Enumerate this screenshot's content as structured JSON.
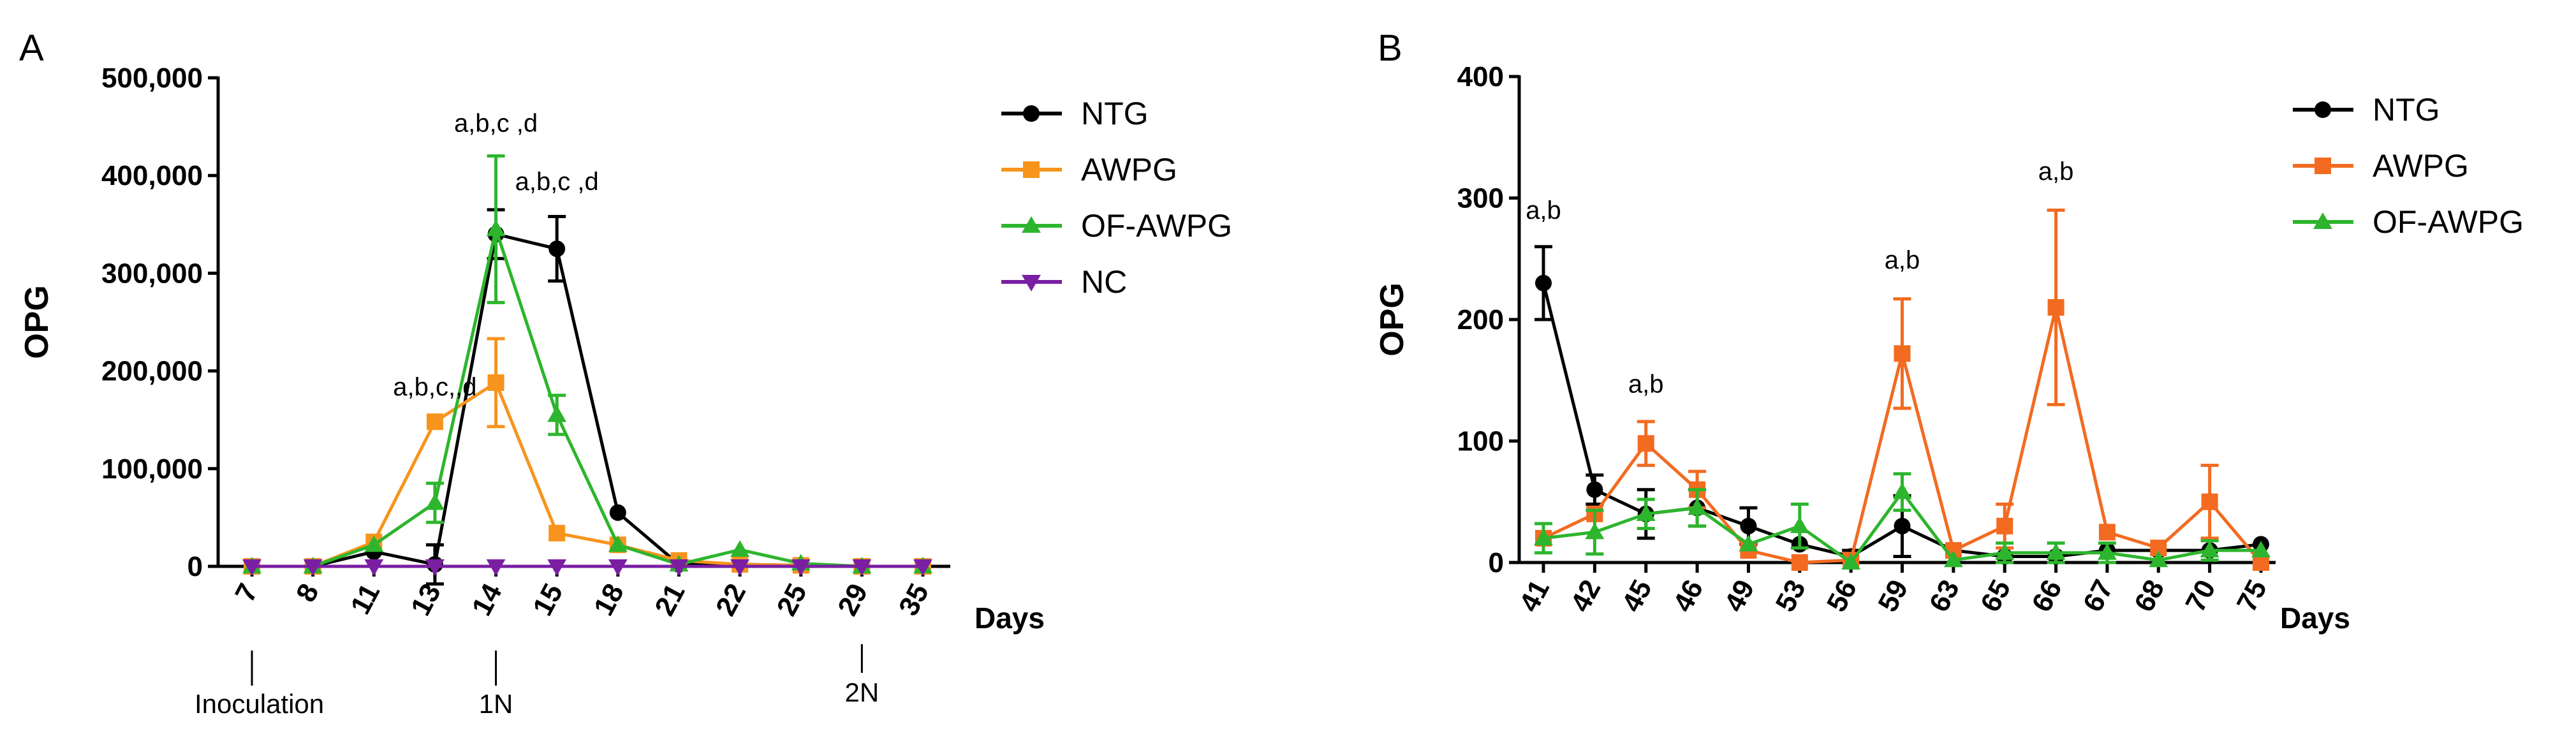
{
  "chart_data": [
    {
      "type": "line",
      "panel": "A",
      "ylabel": "OPG",
      "xlabel": "Days",
      "ylim": [
        0,
        500000
      ],
      "yticks": [
        0,
        100000,
        200000,
        300000,
        400000,
        500000
      ],
      "ytick_labels": [
        "0",
        "100,000",
        "200,000",
        "300,000",
        "400,000",
        "500,000"
      ],
      "categories": [
        "7",
        "8",
        "11",
        "13",
        "14",
        "15",
        "18",
        "21",
        "22",
        "25",
        "29",
        "35"
      ],
      "legend_position": "right",
      "series": [
        {
          "name": "NTG",
          "color": "#000000",
          "marker": "circle",
          "values": [
            0,
            0,
            15000,
            2000,
            340000,
            325000,
            55000,
            2000,
            2000,
            1000,
            0,
            0
          ],
          "errors": [
            0,
            0,
            0,
            20000,
            25000,
            33000,
            0,
            0,
            0,
            0,
            0,
            0
          ]
        },
        {
          "name": "AWPG",
          "color": "#F7941D",
          "marker": "square",
          "values": [
            0,
            0,
            25000,
            148000,
            188000,
            34000,
            22000,
            6000,
            2000,
            1000,
            0,
            0
          ],
          "errors": [
            0,
            0,
            0,
            0,
            45000,
            0,
            0,
            0,
            0,
            0,
            0,
            0
          ]
        },
        {
          "name": "OF-AWPG",
          "color": "#2DB52D",
          "marker": "triangle-up",
          "values": [
            0,
            0,
            22000,
            65000,
            345000,
            155000,
            22000,
            2000,
            17000,
            3000,
            0,
            0
          ],
          "errors": [
            0,
            0,
            0,
            20000,
            75000,
            20000,
            0,
            0,
            0,
            0,
            0,
            0
          ]
        },
        {
          "name": "NC",
          "color": "#7A1FA2",
          "marker": "triangle-down",
          "values": [
            0,
            0,
            0,
            0,
            0,
            0,
            0,
            0,
            0,
            0,
            0,
            0
          ],
          "errors": [
            0,
            0,
            0,
            0,
            0,
            0,
            0,
            0,
            0,
            0,
            0,
            0
          ]
        }
      ],
      "annotations": [
        {
          "text": "a,b,c,,d",
          "category": "13",
          "y": 175000
        },
        {
          "text": "a,b,c ,d",
          "category": "14",
          "y": 445000
        },
        {
          "text": "a,b,c ,d",
          "category": "15",
          "y": 385000
        }
      ],
      "events": [
        {
          "label": "Inoculation",
          "category": "7"
        },
        {
          "label": "1N",
          "category": "14"
        },
        {
          "label": "2N",
          "category": "29"
        }
      ]
    },
    {
      "type": "line",
      "panel": "B",
      "ylabel": "OPG",
      "xlabel": "Days",
      "ylim": [
        0,
        400
      ],
      "yticks": [
        0,
        100,
        200,
        300,
        400
      ],
      "ytick_labels": [
        "0",
        "100",
        "200",
        "300",
        "400"
      ],
      "categories": [
        "41",
        "42",
        "45",
        "46",
        "49",
        "53",
        "56",
        "59",
        "63",
        "65",
        "66",
        "67",
        "68",
        "70",
        "75"
      ],
      "legend_position": "right",
      "series": [
        {
          "name": "NTG",
          "color": "#000000",
          "marker": "circle",
          "values": [
            230,
            60,
            40,
            45,
            30,
            15,
            5,
            30,
            10,
            5,
            5,
            10,
            10,
            10,
            15
          ],
          "errors": [
            30,
            12,
            20,
            15,
            15,
            0,
            5,
            25,
            0,
            0,
            0,
            0,
            0,
            0,
            0
          ]
        },
        {
          "name": "AWPG",
          "color": "#F26B21",
          "marker": "square",
          "values": [
            20,
            40,
            98,
            60,
            10,
            0,
            2,
            172,
            10,
            30,
            210,
            25,
            12,
            50,
            0
          ],
          "errors": [
            0,
            0,
            18,
            15,
            0,
            0,
            0,
            45,
            0,
            18,
            80,
            0,
            0,
            30,
            0
          ]
        },
        {
          "name": "OF-AWPG",
          "color": "#2DB52D",
          "marker": "triangle-up",
          "values": [
            20,
            25,
            40,
            45,
            15,
            30,
            0,
            58,
            2,
            8,
            8,
            8,
            2,
            10,
            10
          ],
          "errors": [
            12,
            18,
            12,
            15,
            0,
            18,
            0,
            15,
            0,
            8,
            8,
            8,
            0,
            8,
            0
          ]
        }
      ],
      "annotations": [
        {
          "text": "a,b",
          "category": "41",
          "y": 283
        },
        {
          "text": "a,b",
          "category": "45",
          "y": 140
        },
        {
          "text": "a,b",
          "category": "59",
          "y": 242
        },
        {
          "text": "a,b",
          "category": "66",
          "y": 315
        }
      ]
    }
  ]
}
